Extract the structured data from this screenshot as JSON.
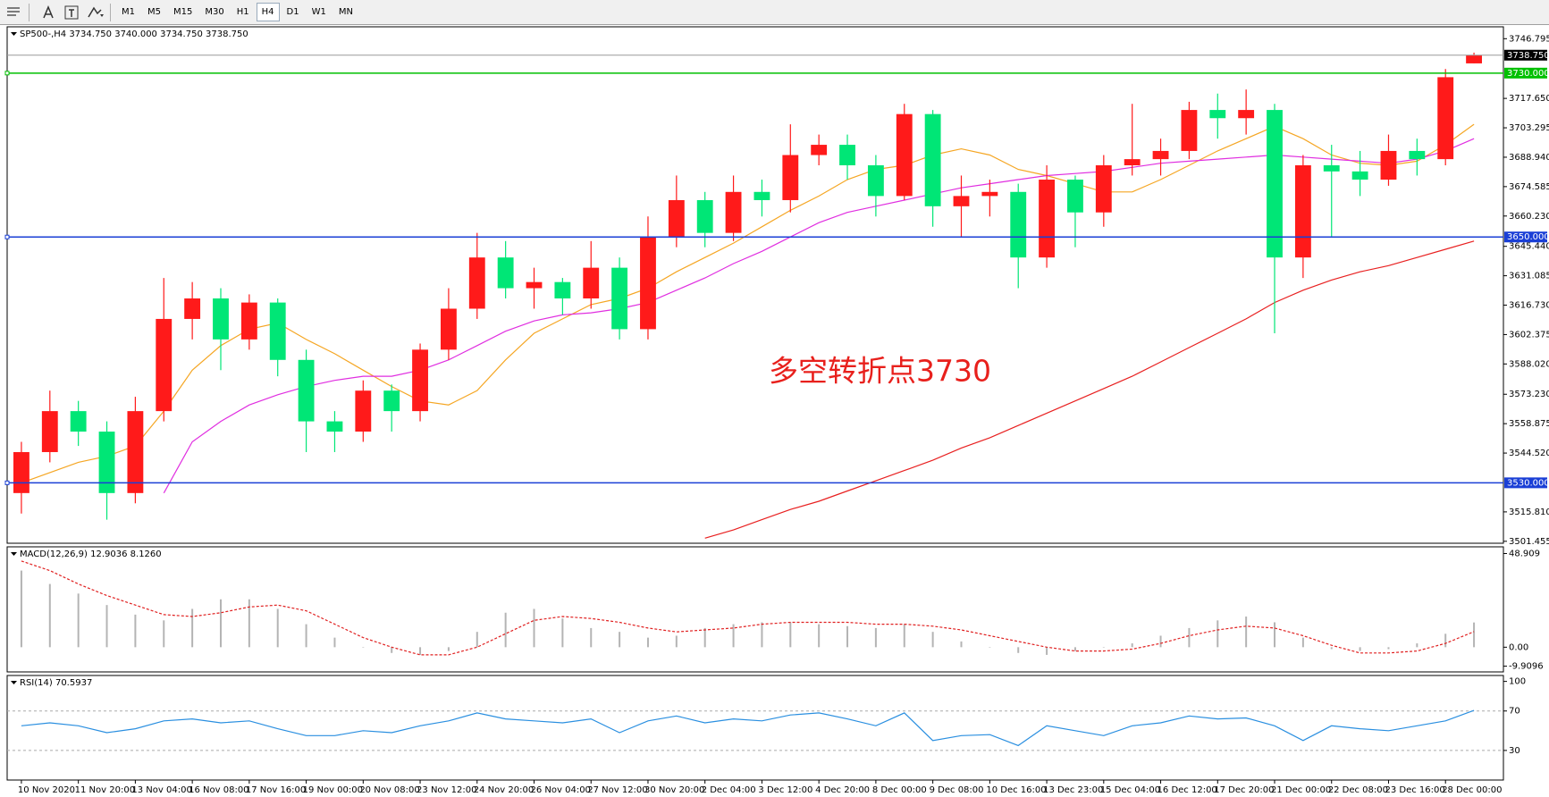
{
  "toolbar": {
    "timeframes": [
      "M1",
      "M5",
      "M15",
      "M30",
      "H1",
      "H4",
      "D1",
      "W1",
      "MN"
    ],
    "selected_index": 5
  },
  "chart_data": [
    {
      "type": "candlestick",
      "title": "SP500-,H4  3734.750 3740.000 3734.750 3738.750",
      "annotation": "多空转折点3730",
      "categories": [
        "10 Nov 2020",
        null,
        "11 Nov 20:00",
        null,
        "13 Nov 04:00",
        null,
        "16 Nov 08:00",
        null,
        "17 Nov 16:00",
        null,
        "19 Nov 00:00",
        null,
        "20 Nov 08:00",
        null,
        "23 Nov 12:00",
        null,
        "24 Nov 20:00",
        null,
        "26 Nov 04:00",
        null,
        "27 Nov 12:00",
        null,
        "30 Nov 20:00",
        null,
        "2 Dec 04:00",
        null,
        "3 Dec 12:00",
        null,
        "4 Dec 20:00",
        null,
        "8 Dec 00:00",
        null,
        "9 Dec 08:00",
        null,
        "10 Dec 16:00",
        null,
        "13 Dec 23:00",
        null,
        "15 Dec 04:00",
        null,
        "16 Dec 12:00",
        null,
        "17 Dec 20:00",
        null,
        "21 Dec 00:00",
        null,
        "22 Dec 08:00",
        null,
        "23 Dec 16:00",
        null,
        "28 Dec 00:00",
        null
      ],
      "open": [
        3525,
        3545,
        3565,
        3555,
        3525,
        3565,
        3610,
        3620,
        3600,
        3618,
        3590,
        3560,
        3555,
        3575,
        3565,
        3595,
        3615,
        3640,
        3625,
        3628,
        3620,
        3635,
        3605,
        3650,
        3668,
        3652,
        3672,
        3668,
        3690,
        3695,
        3685,
        3670,
        3710,
        3665,
        3670,
        3672,
        3640,
        3678,
        3662,
        3685,
        3688,
        3692,
        3712,
        3708,
        3712,
        3640,
        3685,
        3682,
        3678,
        3692,
        3688,
        3734.75
      ],
      "high": [
        3550,
        3575,
        3570,
        3560,
        3572,
        3630,
        3628,
        3625,
        3622,
        3620,
        3595,
        3565,
        3580,
        3578,
        3598,
        3625,
        3652,
        3648,
        3635,
        3630,
        3648,
        3640,
        3660,
        3680,
        3672,
        3680,
        3678,
        3705,
        3700,
        3700,
        3690,
        3715,
        3712,
        3680,
        3678,
        3676,
        3685,
        3680,
        3690,
        3715,
        3698,
        3716,
        3720,
        3722,
        3715,
        3690,
        3695,
        3692,
        3700,
        3698,
        3732,
        3740
      ],
      "low": [
        3515,
        3540,
        3548,
        3512,
        3520,
        3560,
        3600,
        3585,
        3595,
        3582,
        3545,
        3545,
        3550,
        3555,
        3560,
        3590,
        3610,
        3620,
        3615,
        3612,
        3615,
        3600,
        3600,
        3645,
        3645,
        3648,
        3660,
        3662,
        3685,
        3678,
        3660,
        3668,
        3655,
        3650,
        3660,
        3625,
        3635,
        3645,
        3655,
        3680,
        3680,
        3688,
        3698,
        3700,
        3603,
        3630,
        3650,
        3670,
        3675,
        3680,
        3685,
        3734.75
      ],
      "close": [
        3545,
        3565,
        3555,
        3525,
        3565,
        3610,
        3620,
        3600,
        3618,
        3590,
        3560,
        3555,
        3575,
        3565,
        3595,
        3615,
        3640,
        3625,
        3628,
        3620,
        3635,
        3605,
        3650,
        3668,
        3652,
        3672,
        3668,
        3690,
        3695,
        3685,
        3670,
        3710,
        3665,
        3670,
        3672,
        3640,
        3678,
        3662,
        3685,
        3688,
        3692,
        3712,
        3708,
        3712,
        3640,
        3685,
        3682,
        3678,
        3692,
        3688,
        3728,
        3738.75
      ],
      "up_color": "#ff1a1a",
      "down_color": "#00e676",
      "lines": [
        {
          "color": "#f5a623",
          "values": [
            3530,
            3535,
            3540,
            3543,
            3548,
            3565,
            3585,
            3597,
            3605,
            3608,
            3600,
            3593,
            3585,
            3577,
            3570,
            3568,
            3575,
            3590,
            3603,
            3610,
            3617,
            3620,
            3625,
            3633,
            3640,
            3647,
            3655,
            3663,
            3670,
            3678,
            3683,
            3685,
            3690,
            3693,
            3690,
            3683,
            3680,
            3676,
            3672,
            3672,
            3678,
            3685,
            3692,
            3698,
            3704,
            3698,
            3690,
            3686,
            3685,
            3687,
            3695,
            3705
          ]
        },
        {
          "color": "#e02ee0",
          "values": [
            null,
            null,
            null,
            null,
            null,
            3525,
            3550,
            3560,
            3568,
            3573,
            3577,
            3580,
            3582,
            3582,
            3585,
            3590,
            3597,
            3604,
            3609,
            3612,
            3613,
            3615,
            3618,
            3624,
            3630,
            3637,
            3643,
            3650,
            3657,
            3662,
            3665,
            3668,
            3671,
            3674,
            3676,
            3678,
            3680,
            3681,
            3682,
            3684,
            3686,
            3687,
            3688,
            3689,
            3690,
            3689,
            3688,
            3687,
            3686,
            3688,
            3692,
            3698
          ]
        },
        {
          "color": "#e82020",
          "values": [
            null,
            null,
            null,
            null,
            null,
            null,
            null,
            null,
            null,
            null,
            null,
            null,
            null,
            null,
            null,
            null,
            null,
            null,
            null,
            null,
            null,
            null,
            null,
            null,
            3503,
            3507,
            3512,
            3517,
            3521,
            3526,
            3531,
            3536,
            3541,
            3547,
            3552,
            3558,
            3564,
            3570,
            3576,
            3582,
            3589,
            3596,
            3603,
            3610,
            3618,
            3624,
            3629,
            3633,
            3636,
            3640,
            3644,
            3648
          ]
        }
      ],
      "levels": [
        {
          "value": 3730,
          "label": "3730.000",
          "color": "#00c000"
        },
        {
          "value": 3650,
          "label": "3650.000",
          "color": "#1a3fd6"
        },
        {
          "value": 3530,
          "label": "3530.000",
          "color": "#1a3fd6"
        }
      ],
      "price_line": {
        "value": 3738.75,
        "label": "3738.750"
      },
      "ylim": [
        3500.5,
        3752.6
      ],
      "yticks": [
        3746.795,
        {
          "value": 3717.65,
          "label": "3717.650"
        },
        3703.295,
        {
          "value": 3688.94,
          "label": "3688.940"
        },
        3674.585,
        {
          "value": 3660.23,
          "label": "3660.230"
        },
        {
          "value": 3645.44,
          "label": "3645.440"
        },
        3631.085,
        {
          "value": 3616.73,
          "label": "3616.730"
        },
        3602.375,
        {
          "value": 3588.02,
          "label": "3588.020"
        },
        {
          "value": 3573.23,
          "label": "3573.230"
        },
        3558.875,
        {
          "value": 3544.52,
          "label": "3544.520"
        },
        {
          "value": 3515.81,
          "label": "3515.810"
        },
        3501.455
      ]
    },
    {
      "type": "bar",
      "title": "MACD(12,26,9) 12.9036 8.1260",
      "series": [
        {
          "type": "bar",
          "color": "#b4b4b4",
          "values": [
            40,
            33,
            28,
            22,
            17,
            14,
            20,
            25,
            25,
            20,
            12,
            5,
            0,
            -3,
            -4,
            -2,
            8,
            18,
            20,
            15,
            10,
            8,
            5,
            6,
            10,
            12,
            13,
            13,
            12,
            11,
            10,
            12,
            8,
            3,
            0,
            -3,
            -4,
            -2,
            0,
            2,
            6,
            10,
            14,
            16,
            13,
            5,
            -1,
            -2,
            -1,
            2,
            7,
            12.9036
          ]
        },
        {
          "type": "line",
          "color": "#e02020",
          "values": [
            45,
            40,
            33,
            27,
            22,
            17,
            16,
            18,
            21,
            22,
            19,
            12,
            5,
            0,
            -4,
            -4,
            0,
            7,
            14,
            16,
            15,
            13,
            10,
            8,
            9,
            10,
            12,
            13,
            13,
            13,
            12,
            12,
            11,
            9,
            6,
            3,
            0,
            -2,
            -2,
            -1,
            2,
            6,
            9,
            11,
            10,
            6,
            1,
            -3,
            -3,
            -2,
            2,
            8.126
          ]
        }
      ],
      "ylim": [
        -12.9,
        52.4
      ],
      "yticks": [
        48.909,
        {
          "value": 0,
          "label": "0.00"
        },
        -9.9096
      ]
    },
    {
      "type": "line",
      "title": "RSI(14) 70.5937",
      "color": "#2a8fe0",
      "values": [
        55,
        58,
        55,
        48,
        52,
        60,
        62,
        58,
        60,
        52,
        45,
        45,
        50,
        48,
        55,
        60,
        68,
        62,
        60,
        58,
        62,
        48,
        60,
        65,
        58,
        62,
        60,
        66,
        68,
        62,
        55,
        68,
        40,
        45,
        46,
        35,
        55,
        50,
        45,
        55,
        58,
        65,
        62,
        63,
        55,
        40,
        55,
        52,
        50,
        55,
        60,
        70.5937
      ],
      "levels": [
        70,
        30
      ],
      "ylim": [
        0,
        106
      ],
      "yticks": [
        100,
        70,
        30
      ]
    }
  ]
}
